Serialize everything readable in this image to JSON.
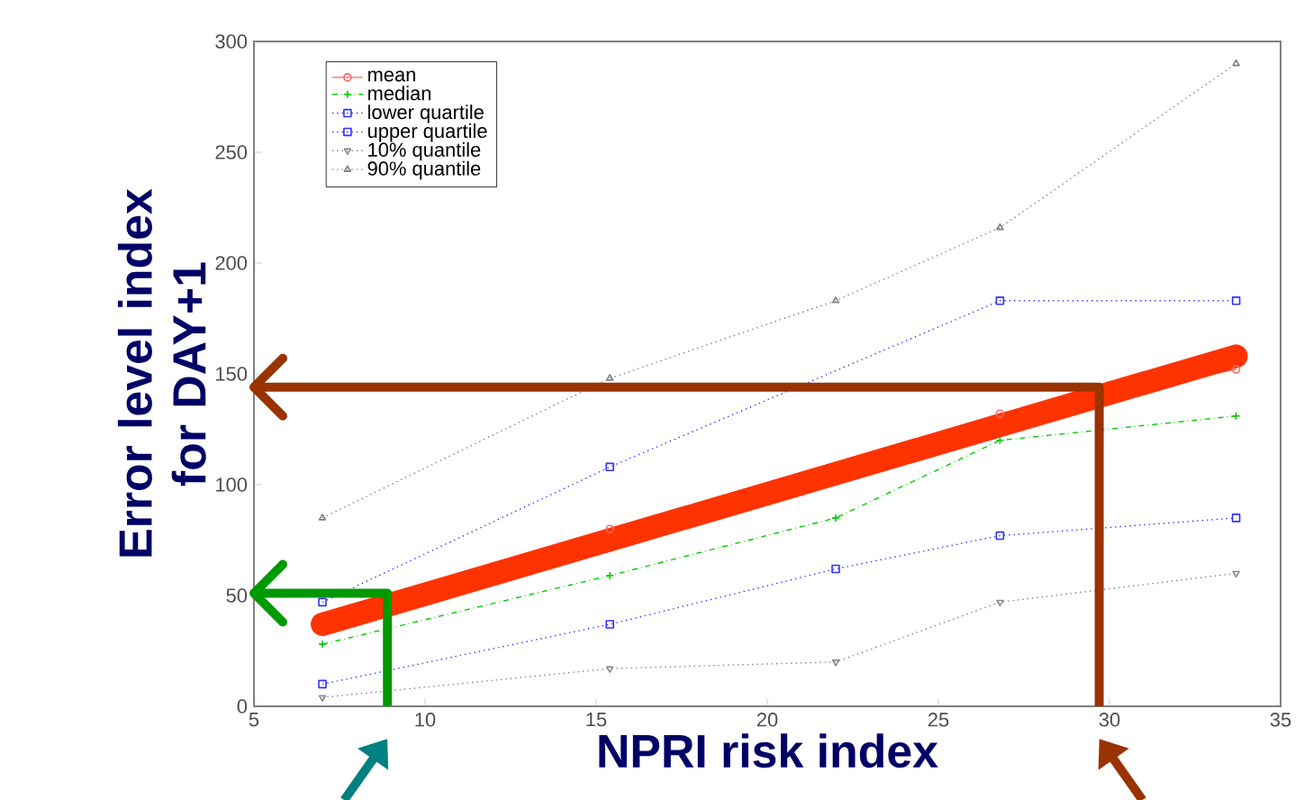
{
  "chart_data": {
    "type": "line",
    "xlabel": "NPRI risk index",
    "ylabel": "Error level index for DAY+1",
    "x": [
      7,
      15.4,
      22,
      26.8,
      33.7
    ],
    "xlim": [
      5,
      35
    ],
    "xticks": [
      5,
      10,
      15,
      20,
      25,
      30,
      35
    ],
    "ylim": [
      0,
      300
    ],
    "yticks": [
      0,
      50,
      100,
      150,
      200,
      250,
      300
    ],
    "grid": false,
    "legend": "top left",
    "series": [
      {
        "name": "mean",
        "color": "#ff6666",
        "marker": "circle",
        "line_style": "solid",
        "values": [
          null,
          80,
          null,
          132,
          152
        ]
      },
      {
        "name": "median",
        "color": "#00cc00",
        "marker": "cross",
        "line_style": "dashed",
        "values": [
          28,
          59,
          85,
          120,
          131
        ]
      },
      {
        "name": "lower quartile",
        "color": "#3333ff",
        "marker": "square",
        "line_style": "dotted",
        "values": [
          10,
          37,
          62,
          77,
          85
        ]
      },
      {
        "name": "upper quartile",
        "color": "#3333ff",
        "marker": "square",
        "line_style": "dotted",
        "values": [
          47,
          108,
          null,
          183,
          183
        ]
      },
      {
        "name": "10% quantile",
        "color": "#808080",
        "marker": "triangle down",
        "line_style": "dotted",
        "values": [
          4,
          17,
          20,
          47,
          60
        ]
      },
      {
        "name": "90% quantile",
        "color": "#808080",
        "marker": "triangle",
        "line_style": "dotted",
        "values": [
          85,
          148,
          183,
          216,
          290
        ]
      },
      {
        "type": "line",
        "color": "#ff3300",
        "marker": "none",
        "line_style": "solid",
        "x": [
          7,
          33.7
        ],
        "values": [
          37,
          158
        ]
      },
      {
        "type": "line",
        "color": "#009900",
        "marker": "none",
        "line_style": "solid",
        "x": [
          5,
          8.9,
          8.9
        ],
        "values": [
          51,
          51,
          0
        ]
      },
      {
        "type": "line",
        "color": "#993300",
        "marker": "none",
        "line_style": "solid",
        "x": [
          5,
          29.7,
          29.7
        ],
        "values": [
          144,
          144,
          0
        ]
      }
    ]
  }
}
